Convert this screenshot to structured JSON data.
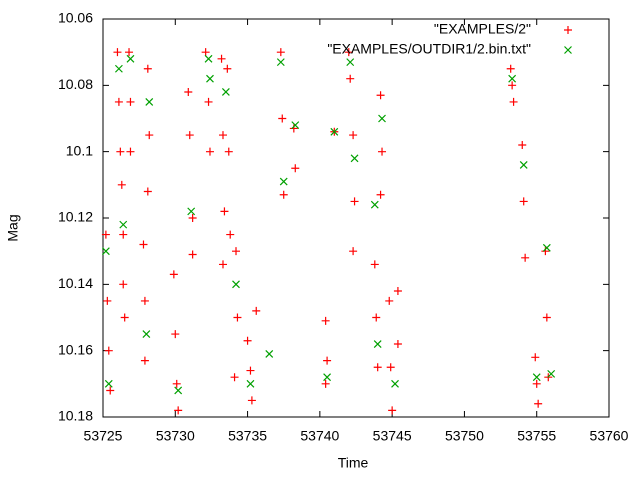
{
  "chart_data": {
    "type": "scatter",
    "x_label": "Time",
    "y_label": "Mag",
    "xlim": [
      53725,
      53760
    ],
    "xticks": [
      53725,
      53730,
      53735,
      53740,
      53745,
      53750,
      53755,
      53760
    ],
    "ylim": [
      10.18,
      10.06
    ],
    "yticks": [
      10.06,
      10.08,
      10.1,
      10.12,
      10.14,
      10.16,
      10.18
    ],
    "inverted_y": true,
    "grid": false,
    "legend": "top-right",
    "series": [
      {
        "name": "\"EXAMPLES/2\"",
        "color": "#ff0000",
        "marker": "plus",
        "x": [
          53725.2,
          53725.3,
          53725.4,
          53725.5,
          53726.0,
          53726.1,
          53726.2,
          53726.3,
          53726.4,
          53726.4,
          53726.5,
          53726.8,
          53726.9,
          53726.9,
          53727.8,
          53727.9,
          53727.9,
          53728.1,
          53728.2,
          53728.1,
          53729.9,
          53730.0,
          53730.1,
          53730.2,
          53730.9,
          53731.0,
          53731.2,
          53731.2,
          53732.1,
          53732.3,
          53732.4,
          53733.2,
          53733.3,
          53733.4,
          53733.3,
          53733.6,
          53733.7,
          53733.8,
          53734.2,
          53734.3,
          53734.1,
          53735.0,
          53735.2,
          53735.3,
          53735.6,
          53737.3,
          53737.4,
          53737.5,
          53738.2,
          53738.3,
          53740.4,
          53740.5,
          53740.4,
          53741.0,
          53742.0,
          53742.1,
          53742.3,
          53742.4,
          53742.3,
          53743.8,
          53743.9,
          53744.0,
          53744.2,
          53744.3,
          53744.2,
          53744.8,
          53744.9,
          53745.0,
          53745.4,
          53745.4,
          53753.2,
          53753.3,
          53753.4,
          53754.0,
          53754.1,
          53754.2,
          53754.9,
          53755.0,
          53755.1,
          53755.6,
          53755.7,
          53755.8
        ],
        "values": [
          10.125,
          10.145,
          10.16,
          10.172,
          10.07,
          10.085,
          10.1,
          10.11,
          10.125,
          10.14,
          10.15,
          10.07,
          10.085,
          10.1,
          10.128,
          10.145,
          10.163,
          10.075,
          10.095,
          10.112,
          10.137,
          10.155,
          10.17,
          10.178,
          10.082,
          10.095,
          10.12,
          10.131,
          10.07,
          10.085,
          10.1,
          10.072,
          10.095,
          10.118,
          10.134,
          10.075,
          10.1,
          10.125,
          10.13,
          10.15,
          10.168,
          10.157,
          10.166,
          10.175,
          10.148,
          10.07,
          10.09,
          10.113,
          10.093,
          10.105,
          10.151,
          10.163,
          10.17,
          10.094,
          10.07,
          10.078,
          10.095,
          10.115,
          10.13,
          10.134,
          10.15,
          10.165,
          10.083,
          10.1,
          10.113,
          10.145,
          10.165,
          10.178,
          10.142,
          10.158,
          10.075,
          10.08,
          10.085,
          10.098,
          10.115,
          10.132,
          10.162,
          10.17,
          10.176,
          10.13,
          10.15,
          10.168
        ]
      },
      {
        "name": "\"EXAMPLES/OUTDIR1/2.bin.txt\"",
        "color": "#00a000",
        "marker": "cross",
        "x": [
          53725.4,
          53725.2,
          53726.1,
          53726.4,
          53726.9,
          53728.0,
          53728.2,
          53730.2,
          53731.1,
          53732.3,
          53732.4,
          53733.5,
          53734.2,
          53735.2,
          53736.5,
          53737.3,
          53737.5,
          53738.3,
          53740.5,
          53741.0,
          53742.1,
          53742.4,
          53743.8,
          53744.0,
          53744.3,
          53745.2,
          53753.3,
          53754.1,
          53755.0,
          53755.7,
          53756.0
        ],
        "values": [
          10.17,
          10.13,
          10.075,
          10.122,
          10.072,
          10.155,
          10.085,
          10.172,
          10.118,
          10.072,
          10.078,
          10.082,
          10.14,
          10.17,
          10.161,
          10.073,
          10.109,
          10.092,
          10.168,
          10.094,
          10.073,
          10.102,
          10.116,
          10.158,
          10.09,
          10.17,
          10.078,
          10.104,
          10.168,
          10.129,
          10.167
        ]
      }
    ]
  }
}
